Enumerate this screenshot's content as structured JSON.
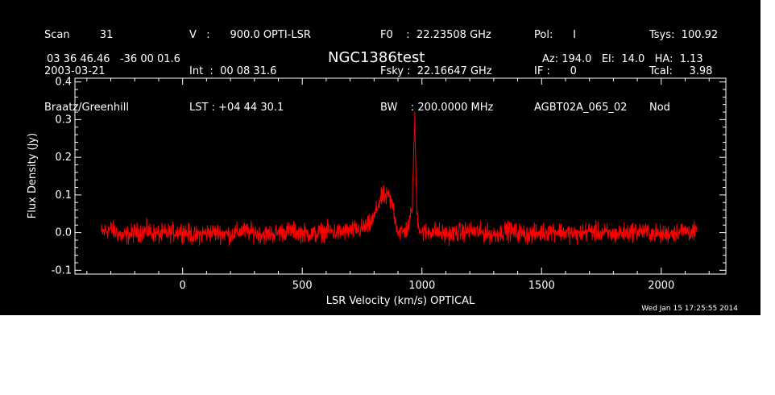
{
  "header": {
    "col1": [
      "Scan         31",
      "2003-03-21",
      "Braatz/Greenhill"
    ],
    "col2": [
      "V   :      900.0 OPTI-LSR",
      "Int  :  00 08 31.6",
      "LST : +04 44 30.1"
    ],
    "col3": [
      "F0    :  22.23508 GHz",
      "Fsky :  22.16647 GHz",
      "BW    : 200.0000 MHz"
    ],
    "col4": [
      "Pol:      I",
      "IF :      0",
      "AGBT02A_065_02"
    ],
    "col5": [
      "Tsys:  100.92",
      "Tcal:     3.98",
      "Nod"
    ],
    "coords": "03 36 46.46   -36 00 01.6",
    "source": "NGC1386test",
    "pointing": "Az: 194.0   El:  14.0   HA:  1.13"
  },
  "timestamp": "Wed Jan 15 17:25:55 2014",
  "colors": {
    "background": "#000000",
    "axes": "#ffffff",
    "trace": "#ff0000"
  },
  "chart_data": {
    "type": "line",
    "title": "NGC1386test",
    "xlabel": "LSR Velocity (km/s) OPTICAL",
    "ylabel": "Flux Density (Jy)",
    "xlim": [
      -450,
      2270
    ],
    "ylim": [
      -0.11,
      0.41
    ],
    "xticks": [
      0,
      500,
      1000,
      1500,
      2000
    ],
    "yticks": [
      -0.1,
      0.0,
      0.1,
      0.2,
      0.3,
      0.4
    ],
    "ytick_labels": [
      "-0.1",
      "0.0",
      "0.1",
      "0.2",
      "0.3",
      "0.4"
    ],
    "grid": false,
    "series": [
      {
        "color": "#ff0000",
        "x": [
          -340,
          -300,
          -250,
          -200,
          -150,
          -100,
          -50,
          0,
          50,
          100,
          150,
          200,
          250,
          300,
          350,
          400,
          450,
          500,
          550,
          600,
          650,
          700,
          750,
          780,
          800,
          820,
          840,
          850,
          860,
          870,
          880,
          890,
          900,
          920,
          940,
          950,
          960,
          965,
          970,
          975,
          980,
          990,
          1000,
          1050,
          1100,
          1150,
          1200,
          1250,
          1300,
          1350,
          1400,
          1450,
          1500,
          1550,
          1600,
          1650,
          1700,
          1750,
          1800,
          1850,
          1900,
          1950,
          2000,
          2050,
          2100,
          2150
        ],
        "y": [
          0.0,
          0.01,
          -0.01,
          0.0,
          0.005,
          -0.005,
          0.0,
          0.005,
          -0.01,
          0.0,
          0.0,
          -0.005,
          0.005,
          0.0,
          -0.005,
          0.0,
          0.005,
          0.0,
          -0.005,
          0.005,
          0.0,
          0.005,
          0.01,
          0.02,
          0.04,
          0.08,
          0.1,
          0.09,
          0.1,
          0.08,
          0.07,
          0.03,
          0.005,
          0.0,
          0.01,
          0.03,
          0.08,
          0.2,
          0.31,
          0.15,
          0.05,
          0.01,
          0.0,
          0.005,
          -0.005,
          0.0,
          0.005,
          0.0,
          -0.005,
          0.005,
          0.0,
          -0.005,
          0.0,
          0.005,
          0.0,
          -0.005,
          0.005,
          0.0,
          -0.005,
          0.0,
          0.005,
          0.0,
          -0.005,
          0.0,
          0.005,
          0.0
        ]
      }
    ]
  }
}
